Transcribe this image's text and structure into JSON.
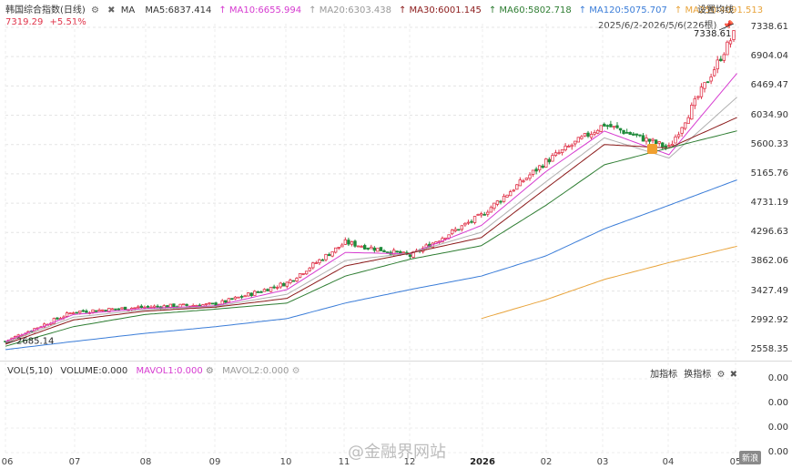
{
  "header": {
    "title": "韩国综合指数(日线)",
    "ma_label": "MA",
    "ma_items": [
      {
        "label": "MA5:6837.414",
        "color": "#333333",
        "arrow": ""
      },
      {
        "label": "MA10:6655.994",
        "color": "#d63bd0",
        "arrow": "↑"
      },
      {
        "label": "MA20:6303.438",
        "color": "#999999",
        "arrow": "↑"
      },
      {
        "label": "MA30:6001.145",
        "color": "#8b1a1a",
        "arrow": "↑"
      },
      {
        "label": "MA60:5802.718",
        "color": "#2e7d32",
        "arrow": "↑"
      },
      {
        "label": "MA120:5075.707",
        "color": "#3b7dd8",
        "arrow": "↑"
      },
      {
        "label": "MA250:4091.513",
        "color": "#e8a33a",
        "arrow": "↑"
      }
    ],
    "price": "7319.29",
    "change_pct": "+5.51%",
    "settings_label": "设置均线",
    "date_range": "2025/6/2-2026/5/6(226根)"
  },
  "volume_panel": {
    "label": "VOL(5,10)",
    "volume": "VOLUME:0.000",
    "mavol1": "MAVOL1:0.000",
    "mavol2": "MAVOL2:0.000",
    "add_indicator": "加指标",
    "change_indicator": "换指标",
    "axis": [
      "0.00",
      "0.00",
      "0.00",
      "0.00"
    ]
  },
  "watermark": "@金融界网站",
  "logo": "新浪",
  "chart_data": {
    "type": "candlestick",
    "title": "韩国综合指数(日线)",
    "y_axis_ticks": [
      7338.61,
      6904.04,
      6469.47,
      6034.9,
      5600.33,
      5165.76,
      4731.19,
      4296.63,
      3862.06,
      3427.49,
      2992.92,
      2558.35
    ],
    "ylim": [
      2558.35,
      7338.61
    ],
    "x_axis_labels": [
      "06",
      "07",
      "08",
      "09",
      "10",
      "11",
      "12",
      "2026",
      "02",
      "03",
      "04",
      "05"
    ],
    "annotations": {
      "max_label": "7338.61",
      "min_label": "2685.14"
    },
    "close_series": {
      "x": [
        "06",
        "07",
        "08",
        "09",
        "10",
        "11",
        "12",
        "2026",
        "02",
        "03",
        "04",
        "05"
      ],
      "values": [
        2685,
        3120,
        3190,
        3230,
        3550,
        4150,
        3950,
        4550,
        5350,
        5900,
        5550,
        7319
      ]
    },
    "ma_series": [
      {
        "name": "MA10",
        "values": [
          2680,
          3080,
          3170,
          3210,
          3450,
          4000,
          3980,
          4400,
          5200,
          5800,
          5450,
          6656
        ]
      },
      {
        "name": "MA20",
        "values": [
          2660,
          3040,
          3150,
          3200,
          3380,
          3880,
          3990,
          4300,
          5050,
          5700,
          5400,
          6303
        ]
      },
      {
        "name": "MA30",
        "values": [
          2640,
          3000,
          3130,
          3190,
          3320,
          3800,
          3990,
          4220,
          4950,
          5600,
          5550,
          6001
        ]
      },
      {
        "name": "MA60",
        "values": [
          2610,
          2900,
          3080,
          3160,
          3250,
          3650,
          3900,
          4100,
          4700,
          5300,
          5550,
          5803
        ]
      },
      {
        "name": "MA120",
        "values": [
          2560,
          2680,
          2800,
          2900,
          3020,
          3250,
          3450,
          3650,
          3950,
          4350,
          4700,
          5076
        ]
      },
      {
        "name": "MA250",
        "values": [
          null,
          null,
          null,
          null,
          null,
          null,
          null,
          3020,
          3300,
          3600,
          3850,
          4092
        ]
      }
    ]
  }
}
